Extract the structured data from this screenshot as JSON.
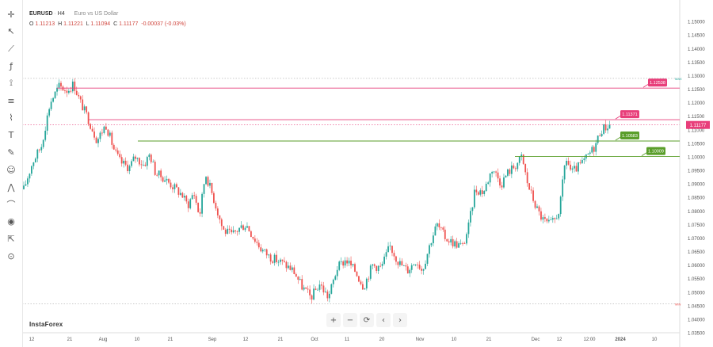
{
  "header": {
    "symbol": "EURUSD",
    "timeframe": "H4",
    "description": "Euro vs US Dollar",
    "ohlc": [
      {
        "label": "O",
        "value": "1.11213"
      },
      {
        "label": "H",
        "value": "1.11221"
      },
      {
        "label": "L",
        "value": "1.11094"
      },
      {
        "label": "C",
        "value": "1.11177"
      }
    ],
    "change": "-0.00037 (-0.03%)"
  },
  "branding": "InstaForex",
  "toolbar": {
    "icons": [
      "crosshair-icon",
      "cursor-icon",
      "trend-line-icon",
      "fx-icon",
      "ruler-icon",
      "fib-icon",
      "pattern-icon",
      "text-icon",
      "brush-icon",
      "emoji-icon",
      "forecast-icon",
      "magnet-icon",
      "eye-icon",
      "export-icon",
      "snapshot-icon"
    ]
  },
  "navigation": {
    "zoom_in": "+",
    "zoom_out": "−",
    "reset": "⟳",
    "back": "‹",
    "forward": "›"
  },
  "colors": {
    "up": "#26a69a",
    "down": "#ef5350",
    "resistance": "#e83e7a",
    "support": "#5a9e2a",
    "current_price": "#e83e7a"
  },
  "chart_data": {
    "type": "candlestick",
    "symbol": "EURUSD",
    "timeframe": "H4",
    "ylim": [
      1.035,
      1.155
    ],
    "y_ticks": [
      "1.15000",
      "1.14500",
      "1.14000",
      "1.13500",
      "1.13000",
      "1.12500",
      "1.12000",
      "1.11500",
      "1.11000",
      "1.10500",
      "1.10000",
      "1.09500",
      "1.09000",
      "1.08500",
      "1.08000",
      "1.07500",
      "1.07000",
      "1.06500",
      "1.06000",
      "1.05500",
      "1.05000",
      "1.04500",
      "1.04000",
      "1.03500"
    ],
    "x_ticks": [
      "12",
      "21",
      "Aug",
      "10",
      "21",
      "Sep",
      "12",
      "21",
      "Oct",
      "11",
      "20",
      "Nov",
      "10",
      "21",
      "Dec",
      "12",
      "12:00",
      "2024",
      "10"
    ],
    "path": [
      [
        0,
        1.088
      ],
      [
        0.015,
        1.098
      ],
      [
        0.03,
        1.104
      ],
      [
        0.045,
        1.12
      ],
      [
        0.06,
        1.126
      ],
      [
        0.075,
        1.1245
      ],
      [
        0.085,
        1.127
      ],
      [
        0.095,
        1.121
      ],
      [
        0.11,
        1.114
      ],
      [
        0.125,
        1.106
      ],
      [
        0.14,
        1.112
      ],
      [
        0.155,
        1.102
      ],
      [
        0.165,
        1.098
      ],
      [
        0.18,
        1.096
      ],
      [
        0.19,
        1.1
      ],
      [
        0.205,
        1.097
      ],
      [
        0.215,
        1.101
      ],
      [
        0.225,
        1.094
      ],
      [
        0.24,
        1.092
      ],
      [
        0.255,
        1.089
      ],
      [
        0.27,
        1.086
      ],
      [
        0.28,
        1.082
      ],
      [
        0.29,
        1.087
      ],
      [
        0.3,
        1.078
      ],
      [
        0.31,
        1.094
      ],
      [
        0.325,
        1.084
      ],
      [
        0.34,
        1.073
      ],
      [
        0.355,
        1.071
      ],
      [
        0.37,
        1.074
      ],
      [
        0.38,
        1.075
      ],
      [
        0.39,
        1.071
      ],
      [
        0.405,
        1.066
      ],
      [
        0.42,
        1.063
      ],
      [
        0.44,
        1.061
      ],
      [
        0.46,
        1.058
      ],
      [
        0.475,
        1.052
      ],
      [
        0.49,
        1.048
      ],
      [
        0.505,
        1.053
      ],
      [
        0.52,
        1.048
      ],
      [
        0.535,
        1.059
      ],
      [
        0.55,
        1.062
      ],
      [
        0.565,
        1.058
      ],
      [
        0.58,
        1.052
      ],
      [
        0.595,
        1.06
      ],
      [
        0.61,
        1.059
      ],
      [
        0.625,
        1.067
      ],
      [
        0.64,
        1.061
      ],
      [
        0.655,
        1.058
      ],
      [
        0.67,
        1.062
      ],
      [
        0.68,
        1.058
      ],
      [
        0.695,
        1.069
      ],
      [
        0.705,
        1.075
      ],
      [
        0.72,
        1.07
      ],
      [
        0.735,
        1.068
      ],
      [
        0.75,
        1.067
      ],
      [
        0.76,
        1.075
      ],
      [
        0.77,
        1.088
      ],
      [
        0.785,
        1.087
      ],
      [
        0.8,
        1.096
      ],
      [
        0.815,
        1.09
      ],
      [
        0.825,
        1.094
      ],
      [
        0.84,
        1.097
      ],
      [
        0.85,
        1.1
      ],
      [
        0.86,
        1.09
      ],
      [
        0.875,
        1.081
      ],
      [
        0.885,
        1.077
      ],
      [
        0.895,
        1.075
      ],
      [
        0.905,
        1.076
      ],
      [
        0.915,
        1.081
      ],
      [
        0.925,
        1.1
      ],
      [
        0.935,
        1.094
      ],
      [
        0.945,
        1.096
      ],
      [
        0.955,
        1.098
      ],
      [
        0.965,
        1.101
      ],
      [
        0.975,
        1.104
      ],
      [
        0.985,
        1.11
      ],
      [
        1.0,
        1.1118
      ]
    ],
    "levels": [
      {
        "price": 1.12538,
        "label": "1.12538",
        "kind": "resistance"
      },
      {
        "price": 1.11371,
        "label": "1.11371",
        "kind": "resistance"
      },
      {
        "price": 1.10583,
        "label": "1.10583",
        "kind": "support"
      },
      {
        "price": 1.10009,
        "label": "1.10009",
        "kind": "support"
      }
    ],
    "last_price": {
      "price": 1.11177,
      "label": "1.11177"
    },
    "max_marker": "MAX",
    "min_marker": "MIN"
  }
}
